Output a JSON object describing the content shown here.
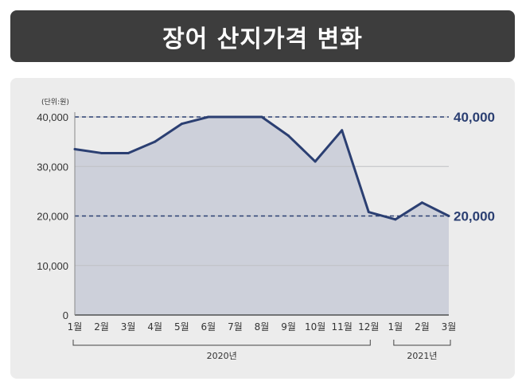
{
  "header": {
    "title": "장어 산지가격 변화"
  },
  "chart_data": {
    "type": "area",
    "title": "장어 산지가격 변화",
    "unit_label": "(단위:원)",
    "categories": [
      "1월",
      "2월",
      "3월",
      "4월",
      "5월",
      "6월",
      "7월",
      "8월",
      "9월",
      "10월",
      "11월",
      "12월",
      "1월",
      "2월",
      "3월"
    ],
    "values": [
      33500,
      32700,
      32700,
      35000,
      38600,
      40000,
      40000,
      40000,
      36200,
      31000,
      37300,
      20800,
      19300,
      22700,
      20000
    ],
    "ylim": [
      0,
      40000
    ],
    "yticks": [
      "0",
      "10,000",
      "20,000",
      "30,000",
      "40,000"
    ],
    "ytick_values": [
      0,
      10000,
      20000,
      30000,
      40000
    ],
    "year_groups": [
      {
        "label": "2020년",
        "start": 0,
        "end": 11
      },
      {
        "label": "2021년",
        "start": 12,
        "end": 14
      }
    ],
    "reference_lines": [
      {
        "value": 40000,
        "label": "40,000"
      },
      {
        "value": 20000,
        "label": "20,000"
      }
    ],
    "grid": true,
    "colors": {
      "line": "#2b3f72",
      "fill": "#cdd0da",
      "grid": "#bfc0c4",
      "reference": "#2b3f72"
    }
  }
}
